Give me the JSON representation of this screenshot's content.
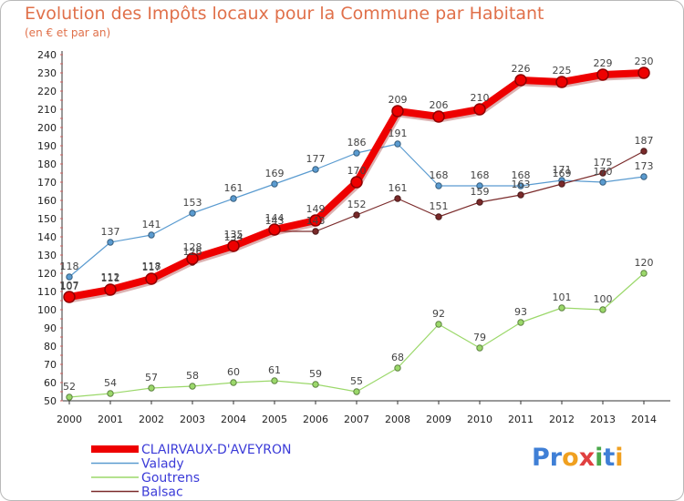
{
  "header": {
    "title": "Evolution des Impôts locaux pour la Commune par Habitant",
    "subtitle": "(en € et par an)"
  },
  "logo": {
    "text": "Proxiti",
    "letters": [
      {
        "char": "P",
        "color": "#3f7fd6"
      },
      {
        "char": "r",
        "color": "#3f7fd6"
      },
      {
        "char": "o",
        "color": "#f0a020"
      },
      {
        "char": "x",
        "color": "#e04040"
      },
      {
        "char": "i",
        "color": "#4aa84a"
      },
      {
        "char": "t",
        "color": "#3f7fd6"
      },
      {
        "char": "i",
        "color": "#f0a020"
      }
    ]
  },
  "chart_data": {
    "type": "line",
    "categories": [
      "2000",
      "2001",
      "2002",
      "2003",
      "2004",
      "2005",
      "2006",
      "2007",
      "2008",
      "2009",
      "2010",
      "2011",
      "2012",
      "2013",
      "2014"
    ],
    "ylim": [
      50,
      240
    ],
    "yticks": [
      50,
      60,
      70,
      80,
      90,
      100,
      110,
      120,
      130,
      140,
      150,
      160,
      170,
      180,
      190,
      200,
      210,
      220,
      230,
      240
    ],
    "grid": false,
    "legend_position": "bottom-left",
    "series": [
      {
        "name": "Valady",
        "color": "#5a9bd0",
        "values": [
          118,
          137,
          141,
          153,
          161,
          169,
          177,
          186,
          191,
          168,
          168,
          168,
          171,
          170,
          173
        ]
      },
      {
        "name": "Goutrens",
        "color": "#9bd86a",
        "values": [
          52,
          54,
          57,
          58,
          60,
          61,
          59,
          55,
          68,
          92,
          79,
          93,
          101,
          100,
          120
        ]
      },
      {
        "name": "Balsac",
        "color": "#7a2a2a",
        "values": [
          107,
          112,
          118,
          126,
          134,
          143,
          143,
          152,
          161,
          151,
          159,
          163,
          169,
          175,
          187
        ]
      },
      {
        "name": "CLAIRVAUX-D'AVEYRON",
        "color": "#ee0000",
        "values": [
          107,
          111,
          117,
          128,
          135,
          144,
          149,
          170,
          209,
          206,
          210,
          226,
          225,
          229,
          230
        ]
      }
    ],
    "legend": [
      "CLAIRVAUX-D'AVEYRON",
      "Valady",
      "Goutrens",
      "Balsac"
    ]
  }
}
